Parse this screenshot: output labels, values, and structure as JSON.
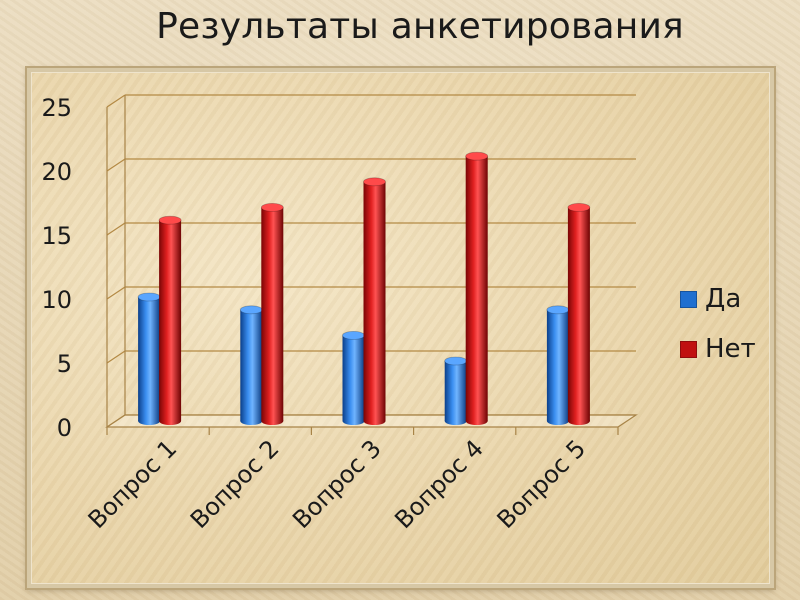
{
  "chart_data": {
    "type": "bar",
    "title": "Результаты анкетирования",
    "categories": [
      "Вопрос 1",
      "Вопрос 2",
      "Вопрос 3",
      "Вопрос 4",
      "Вопрос 5"
    ],
    "series": [
      {
        "name": "Да",
        "values": [
          10,
          9,
          7,
          5,
          9
        ],
        "color": "#1f6fd0"
      },
      {
        "name": "Нет",
        "values": [
          16,
          17,
          19,
          21,
          17
        ],
        "color": "#c01010"
      }
    ],
    "ylim": [
      0,
      25
    ],
    "yticks": [
      "0",
      "5",
      "10",
      "15",
      "20",
      "25"
    ],
    "grid": true,
    "legend_position": "right"
  }
}
